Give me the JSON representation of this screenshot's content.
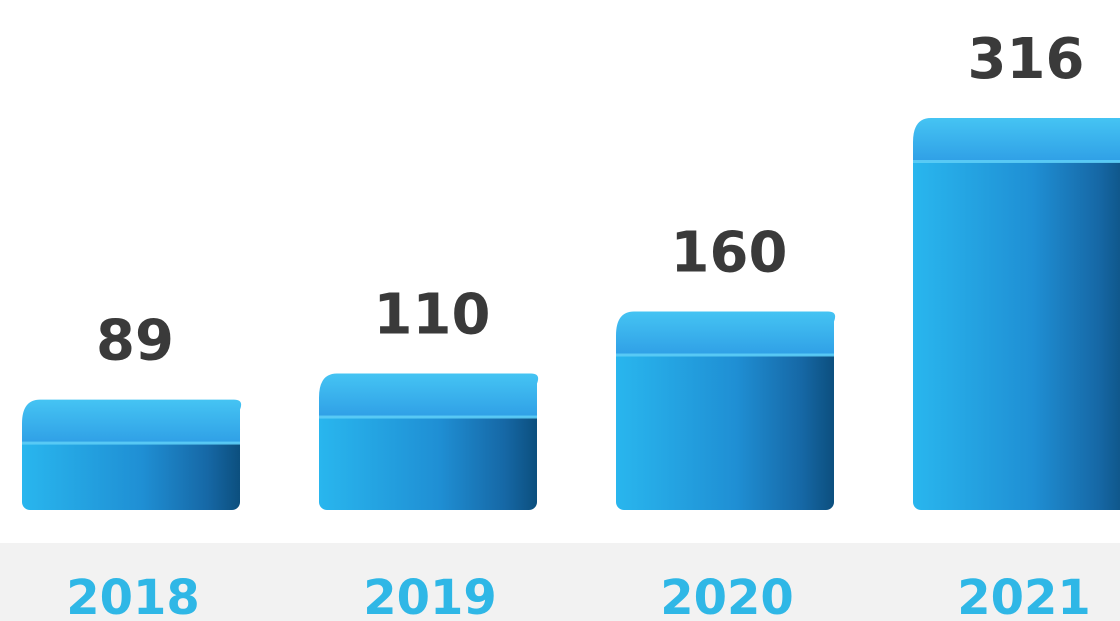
{
  "chart_data": {
    "type": "bar",
    "categories": [
      "2018",
      "2019",
      "2020",
      "2021"
    ],
    "values": [
      89,
      110,
      160,
      316
    ],
    "title": "",
    "xlabel": "",
    "ylabel": "",
    "ylim": [
      0,
      316
    ],
    "grid": false,
    "legend": "none",
    "data_labels": [
      "89",
      "110",
      "160",
      "316"
    ],
    "style": "3d-rounded-bars",
    "colors": {
      "bar_light": "#29b6ee",
      "bar_mid": "#1f8fd4",
      "bar_dark": "#0c4f7e",
      "bar_top": "#2f9fe6",
      "value_text": "#3a3a3a",
      "tick_text": "#2fb7e6",
      "axis_band": "#f2f2f2"
    }
  }
}
